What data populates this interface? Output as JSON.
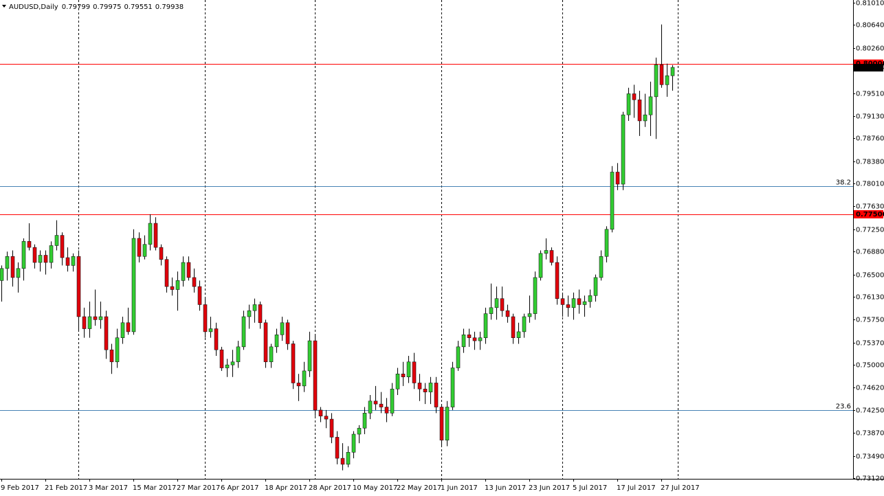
{
  "chart_data": {
    "type": "candlestick",
    "symbol": "AUDUSD,Daily",
    "categories": [
      "9 Feb 2017",
      null,
      null,
      null,
      null,
      null,
      null,
      null,
      "21 Feb 2017",
      null,
      null,
      null,
      null,
      null,
      null,
      null,
      "3 Mar 2017",
      null,
      null,
      null,
      null,
      null,
      null,
      null,
      "15 Mar 2017",
      null,
      null,
      null,
      null,
      null,
      null,
      null,
      "27 Mar 2017",
      null,
      null,
      null,
      null,
      null,
      null,
      null,
      "6 Apr 2017",
      null,
      null,
      null,
      null,
      null,
      null,
      null,
      "18 Apr 2017",
      null,
      null,
      null,
      null,
      null,
      null,
      null,
      "28 Apr 2017",
      null,
      null,
      null,
      null,
      null,
      null,
      null,
      "10 May 2017",
      null,
      null,
      null,
      null,
      null,
      null,
      null,
      "22 May 2017",
      null,
      null,
      null,
      null,
      null,
      null,
      null,
      "1 Jun 2017",
      null,
      null,
      null,
      null,
      null,
      null,
      null,
      "13 Jun 2017",
      null,
      null,
      null,
      null,
      null,
      null,
      null,
      "23 Jun 2017",
      null,
      null,
      null,
      null,
      null,
      null,
      null,
      "5 Jul 2017",
      null,
      null,
      null,
      null,
      null,
      null,
      null,
      "17 Jul 2017",
      null,
      null,
      null,
      null,
      null,
      null,
      null,
      "27 Jul 2017",
      null,
      null
    ],
    "open": [
      0.764,
      0.766,
      0.768,
      0.7645,
      0.766,
      0.7705,
      0.7695,
      0.767,
      0.7682,
      0.767,
      0.7698,
      0.7715,
      0.7678,
      0.7665,
      0.768,
      0.758,
      0.756,
      0.758,
      0.7575,
      0.758,
      0.7525,
      0.7505,
      0.7545,
      0.757,
      0.7555,
      0.771,
      0.768,
      0.77,
      0.7735,
      0.7695,
      0.7675,
      0.763,
      0.7625,
      0.764,
      0.767,
      0.7645,
      0.763,
      0.76,
      0.7555,
      0.756,
      0.7525,
      0.7495,
      0.75,
      0.7505,
      0.753,
      0.758,
      0.759,
      0.76,
      0.757,
      0.7505,
      0.753,
      0.755,
      0.757,
      0.7535,
      0.747,
      0.7465,
      0.749,
      0.754,
      0.7425,
      0.7415,
      0.741,
      0.738,
      0.7345,
      0.7335,
      0.7355,
      0.7385,
      0.7395,
      0.742,
      0.744,
      0.7435,
      0.743,
      0.742,
      0.746,
      0.7485,
      0.748,
      0.7505,
      0.747,
      0.746,
      0.7455,
      0.747,
      0.743,
      0.7375,
      0.743,
      0.7495,
      0.753,
      0.755,
      0.7545,
      0.754,
      0.7545,
      0.7585,
      0.7595,
      0.761,
      0.759,
      0.758,
      0.7545,
      0.7555,
      0.758,
      0.7585,
      0.7645,
      0.7685,
      0.769,
      0.767,
      0.761,
      0.76,
      0.7595,
      0.761,
      0.76,
      0.7605,
      0.7615,
      0.7645,
      0.768,
      0.7725,
      0.782,
      0.78,
      0.7915,
      0.795,
      0.794,
      0.7905,
      0.7915,
      0.7945,
      0.7998,
      0.7965,
      0.79799
    ],
    "high": [
      0.7665,
      0.7688,
      0.769,
      0.767,
      0.771,
      0.7735,
      0.77,
      0.769,
      0.769,
      0.7705,
      0.774,
      0.772,
      0.7695,
      0.7685,
      0.769,
      0.7595,
      0.7605,
      0.7625,
      0.7605,
      0.759,
      0.7535,
      0.756,
      0.758,
      0.7595,
      0.7725,
      0.772,
      0.7715,
      0.775,
      0.7745,
      0.77,
      0.768,
      0.7645,
      0.7655,
      0.768,
      0.768,
      0.766,
      0.764,
      0.761,
      0.758,
      0.757,
      0.753,
      0.751,
      0.7525,
      0.754,
      0.759,
      0.76,
      0.761,
      0.7605,
      0.7575,
      0.7535,
      0.756,
      0.758,
      0.7575,
      0.754,
      0.7485,
      0.7505,
      0.7555,
      0.755,
      0.743,
      0.7425,
      0.742,
      0.739,
      0.737,
      0.7365,
      0.739,
      0.74,
      0.743,
      0.745,
      0.7465,
      0.7455,
      0.7445,
      0.747,
      0.7495,
      0.7505,
      0.7515,
      0.752,
      0.7485,
      0.747,
      0.748,
      0.748,
      0.7435,
      0.744,
      0.7505,
      0.754,
      0.756,
      0.756,
      0.7555,
      0.7555,
      0.7595,
      0.7635,
      0.763,
      0.763,
      0.76,
      0.7585,
      0.757,
      0.7585,
      0.7615,
      0.7655,
      0.769,
      0.771,
      0.7695,
      0.768,
      0.762,
      0.7615,
      0.762,
      0.7625,
      0.7615,
      0.7625,
      0.765,
      0.769,
      0.773,
      0.783,
      0.7835,
      0.792,
      0.796,
      0.7965,
      0.7955,
      0.795,
      0.797,
      0.801,
      0.8065,
      0.8,
      0.79975
    ],
    "low": [
      0.7605,
      0.764,
      0.763,
      0.762,
      0.764,
      0.769,
      0.766,
      0.7655,
      0.765,
      0.766,
      0.769,
      0.7665,
      0.7655,
      0.7655,
      0.7555,
      0.7545,
      0.7545,
      0.7565,
      0.756,
      0.751,
      0.7485,
      0.7495,
      0.7535,
      0.755,
      0.755,
      0.767,
      0.7675,
      0.769,
      0.769,
      0.7665,
      0.762,
      0.7615,
      0.759,
      0.763,
      0.764,
      0.762,
      0.759,
      0.7545,
      0.7545,
      0.7515,
      0.749,
      0.748,
      0.748,
      0.7495,
      0.7525,
      0.756,
      0.757,
      0.756,
      0.7495,
      0.7495,
      0.752,
      0.754,
      0.7525,
      0.746,
      0.744,
      0.7455,
      0.748,
      0.7415,
      0.7405,
      0.7395,
      0.737,
      0.7335,
      0.7325,
      0.733,
      0.7345,
      0.737,
      0.7385,
      0.741,
      0.7425,
      0.742,
      0.7405,
      0.7415,
      0.745,
      0.7465,
      0.747,
      0.746,
      0.744,
      0.7435,
      0.7435,
      0.742,
      0.7365,
      0.7365,
      0.7425,
      0.749,
      0.752,
      0.753,
      0.7525,
      0.7525,
      0.7535,
      0.7575,
      0.7575,
      0.758,
      0.757,
      0.7535,
      0.7535,
      0.7545,
      0.757,
      0.7575,
      0.764,
      0.7675,
      0.7665,
      0.76,
      0.758,
      0.758,
      0.7575,
      0.7585,
      0.758,
      0.7595,
      0.7605,
      0.764,
      0.767,
      0.772,
      0.779,
      0.779,
      0.7905,
      0.791,
      0.788,
      0.7895,
      0.788,
      0.7875,
      0.796,
      0.7945,
      0.79551
    ],
    "close": [
      0.766,
      0.768,
      0.7645,
      0.766,
      0.7705,
      0.7695,
      0.767,
      0.7682,
      0.767,
      0.7698,
      0.7715,
      0.7678,
      0.7665,
      0.768,
      0.758,
      0.756,
      0.758,
      0.7575,
      0.758,
      0.7525,
      0.7505,
      0.7545,
      0.757,
      0.7555,
      0.771,
      0.768,
      0.77,
      0.7735,
      0.7695,
      0.7675,
      0.763,
      0.7625,
      0.764,
      0.767,
      0.7645,
      0.763,
      0.76,
      0.7555,
      0.756,
      0.7525,
      0.7495,
      0.75,
      0.7505,
      0.753,
      0.758,
      0.759,
      0.76,
      0.757,
      0.7505,
      0.753,
      0.755,
      0.757,
      0.7535,
      0.747,
      0.7465,
      0.749,
      0.754,
      0.7425,
      0.7415,
      0.741,
      0.738,
      0.7345,
      0.7335,
      0.7355,
      0.7385,
      0.7395,
      0.742,
      0.744,
      0.7435,
      0.743,
      0.742,
      0.746,
      0.7485,
      0.748,
      0.7505,
      0.747,
      0.746,
      0.7455,
      0.747,
      0.743,
      0.7375,
      0.743,
      0.7495,
      0.753,
      0.755,
      0.7545,
      0.754,
      0.7545,
      0.7585,
      0.7595,
      0.761,
      0.759,
      0.758,
      0.7545,
      0.7555,
      0.758,
      0.7585,
      0.7645,
      0.7685,
      0.769,
      0.767,
      0.761,
      0.76,
      0.7595,
      0.761,
      0.76,
      0.7605,
      0.7615,
      0.7645,
      0.768,
      0.7725,
      0.782,
      0.78,
      0.7915,
      0.795,
      0.794,
      0.7905,
      0.7915,
      0.7945,
      0.7998,
      0.7965,
      0.798,
      0.79938
    ],
    "up_color": "#32cd32",
    "down_color": "#e0000b",
    "ylim": [
      0.73109,
      0.81056
    ],
    "yticks": [
      {
        "value": 0.8101,
        "label": "0.81010"
      },
      {
        "value": 0.8064,
        "label": "0.80640"
      },
      {
        "value": 0.8026,
        "label": "0.80260"
      },
      {
        "value": 0.7951,
        "label": "0.79510"
      },
      {
        "value": 0.7913,
        "label": "0.79130"
      },
      {
        "value": 0.7876,
        "label": "0.78760"
      },
      {
        "value": 0.7838,
        "label": "0.78380"
      },
      {
        "value": 0.7801,
        "label": "0.78010"
      },
      {
        "value": 0.7763,
        "label": "0.77630"
      },
      {
        "value": 0.7725,
        "label": "0.77250"
      },
      {
        "value": 0.7688,
        "label": "0.76880"
      },
      {
        "value": 0.765,
        "label": "0.76500"
      },
      {
        "value": 0.7613,
        "label": "0.76130"
      },
      {
        "value": 0.7575,
        "label": "0.75750"
      },
      {
        "value": 0.7537,
        "label": "0.75370"
      },
      {
        "value": 0.75,
        "label": "0.75000"
      },
      {
        "value": 0.7462,
        "label": "0.74620"
      },
      {
        "value": 0.7425,
        "label": "0.74250"
      },
      {
        "value": 0.7387,
        "label": "0.73870"
      },
      {
        "value": 0.7349,
        "label": "0.73490"
      },
      {
        "value": 0.7312,
        "label": "0.73120"
      }
    ],
    "grid": false,
    "hlines": [
      {
        "value": 0.8,
        "label": "0.80000",
        "color": "#ff0000"
      },
      {
        "value": 0.775,
        "label": "0.77500",
        "color": "#ff0000"
      }
    ],
    "fib_levels": [
      {
        "price": 0.7797,
        "level": 38.2,
        "color": "#4682b4"
      },
      {
        "price": 0.7425,
        "level": 23.6,
        "color": "#4682b4"
      }
    ]
  }
}
